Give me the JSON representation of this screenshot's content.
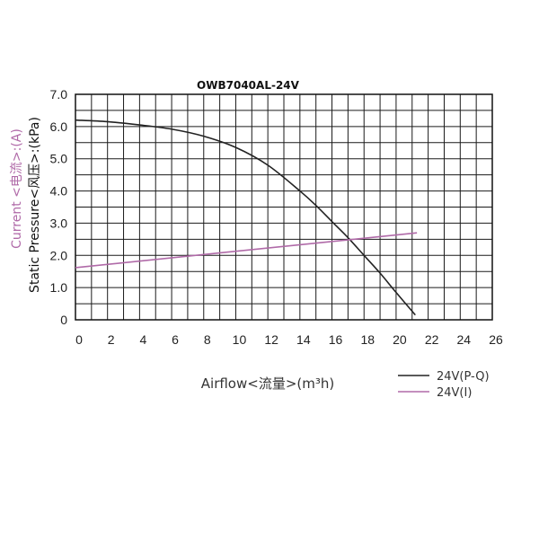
{
  "chart_data": {
    "type": "line",
    "title": "OWB7040AL-24V",
    "xlabel": "Airflow<流量>(m³h)",
    "ylabel": "Static Pressure<风压>:(kPa)",
    "ylabel_secondary": "Current <电流>:(A)",
    "xlim": [
      0,
      26
    ],
    "ylim": [
      0,
      7
    ],
    "x_ticks": [
      "0",
      "2",
      "4",
      "6",
      "8",
      "10",
      "12",
      "14",
      "16",
      "18",
      "20",
      "22",
      "24",
      "26"
    ],
    "y_ticks": [
      "0",
      "1.0",
      "2.0",
      "3.0",
      "4.0",
      "5.0",
      "6.0",
      "7.0"
    ],
    "grid": true,
    "legend_position": "bottom-right",
    "series": [
      {
        "name": "24V(P-Q)",
        "color": "#222222",
        "x": [
          0,
          2,
          4,
          6,
          8,
          10,
          12,
          14,
          15,
          16,
          17,
          18,
          19,
          20,
          21.2
        ],
        "y": [
          6.2,
          6.15,
          6.05,
          5.92,
          5.7,
          5.35,
          4.8,
          4.0,
          3.55,
          3.05,
          2.55,
          2.0,
          1.45,
          0.85,
          0.15
        ]
      },
      {
        "name": "24V(I)",
        "color": "#b06aa8",
        "x": [
          0,
          21.3
        ],
        "y": [
          1.62,
          2.7
        ]
      }
    ]
  }
}
